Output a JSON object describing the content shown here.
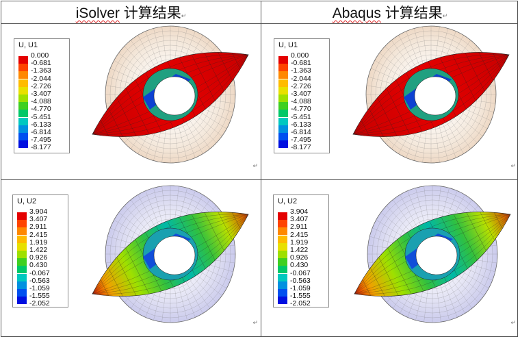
{
  "columns": [
    {
      "title_latin": "iSolver",
      "title_cjk": " 计算结果",
      "title_mark": "↵"
    },
    {
      "title_latin": "Abaqus",
      "title_cjk": " 计算结果",
      "title_mark": "↵"
    }
  ],
  "legend_colors": [
    "#e40000",
    "#ff4400",
    "#ff8800",
    "#ffbb00",
    "#e8e000",
    "#9ee000",
    "#3fd020",
    "#00c868",
    "#00c8c0",
    "#0090e0",
    "#0050f0",
    "#0010e0"
  ],
  "cells": {
    "u1_left": {
      "title": "U, U1",
      "values": [
        "0.000",
        "-0.681",
        "-1.363",
        "-2.044",
        "-2.726",
        "-3.407",
        "-4.088",
        "-4.770",
        "-5.451",
        "-6.133",
        "-6.814",
        "-7.495",
        "-8.177"
      ],
      "mark": "↵"
    },
    "u1_right": {
      "title": "U, U1",
      "values": [
        "0.000",
        "-0.681",
        "-1.363",
        "-2.044",
        "-2.726",
        "-3.407",
        "-4.088",
        "-4.770",
        "-5.451",
        "-6.133",
        "-6.814",
        "-7.495",
        "-8.177"
      ],
      "mark": "↵"
    },
    "u2_left": {
      "title": "U, U2",
      "values": [
        "3.904",
        "3.407",
        "2.911",
        "2.415",
        "1.919",
        "1.422",
        "0.926",
        "0.430",
        "-0.067",
        "-0.563",
        "-1.059",
        "-1.555",
        "-2.052"
      ],
      "mark": "↵"
    },
    "u2_right": {
      "title": "U, U2",
      "values": [
        "3.904",
        "3.407",
        "2.911",
        "2.415",
        "1.919",
        "1.422",
        "0.926",
        "0.430",
        "-0.067",
        "-0.563",
        "-1.059",
        "-1.555",
        "-2.052"
      ],
      "mark": "↵"
    }
  }
}
